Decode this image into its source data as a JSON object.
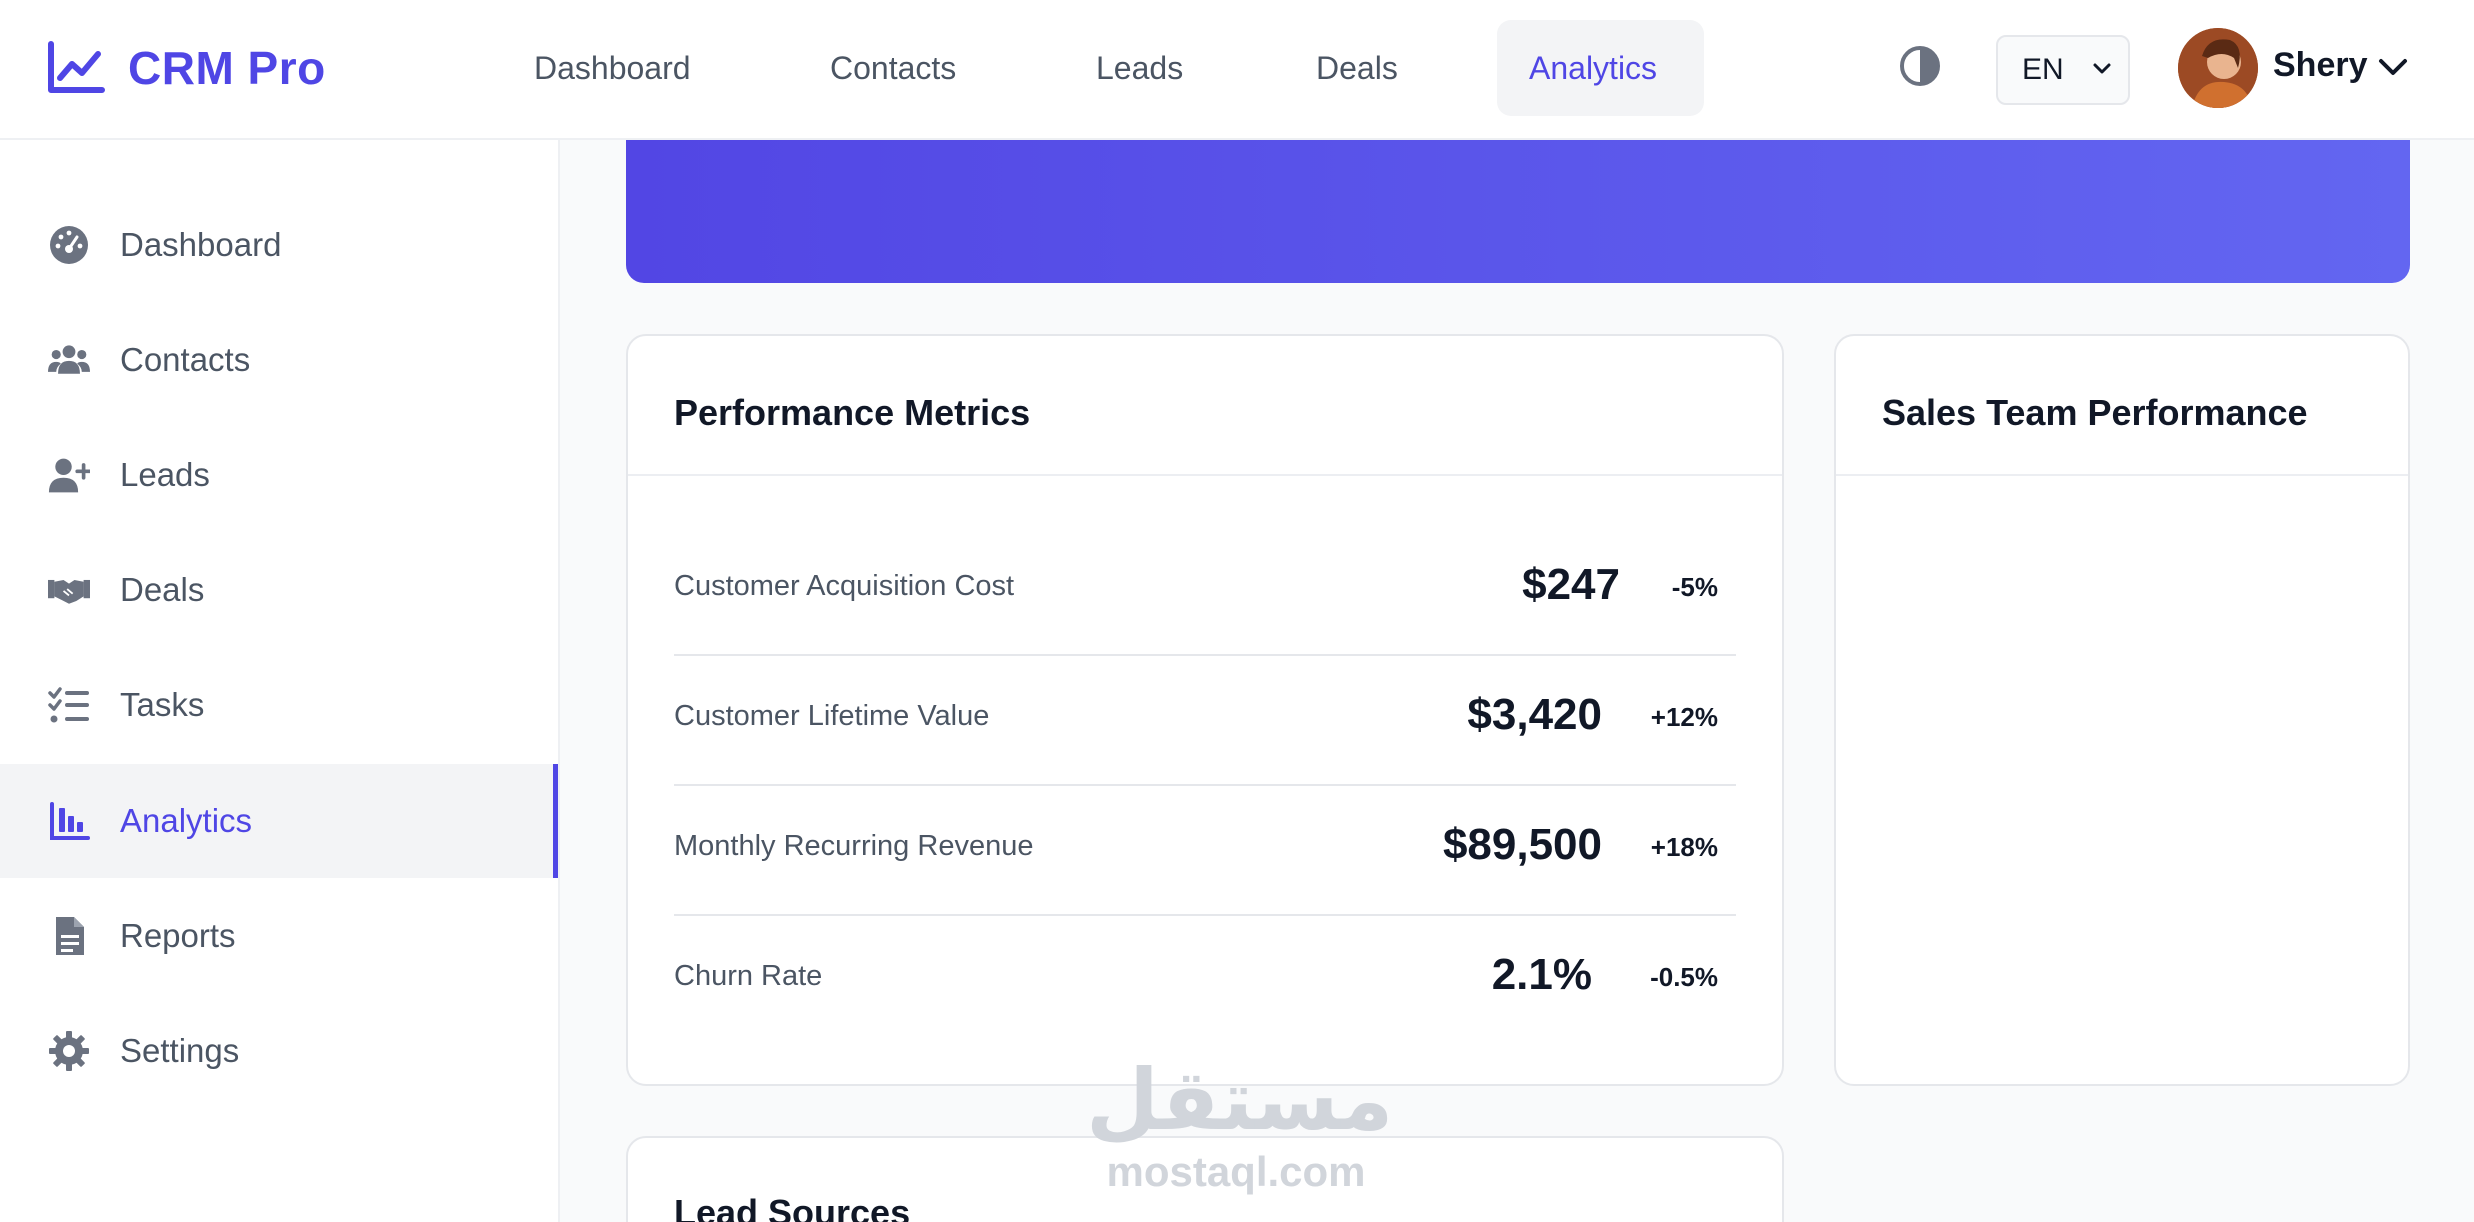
{
  "app": {
    "brand_name": "CRM Pro",
    "accent_color": "#4f46e5",
    "brand_icon": "chart-line-icon"
  },
  "topnav": {
    "links": [
      "Dashboard",
      "Contacts",
      "Leads",
      "Deals",
      "Analytics"
    ],
    "active": "Analytics",
    "theme_icon": "contrast-icon",
    "language": "EN",
    "user_name": "Shery"
  },
  "sidebar": {
    "items": [
      {
        "label": "Dashboard",
        "icon": "gauge-icon"
      },
      {
        "label": "Contacts",
        "icon": "users-icon"
      },
      {
        "label": "Leads",
        "icon": "user-plus-icon"
      },
      {
        "label": "Deals",
        "icon": "handshake-icon"
      },
      {
        "label": "Tasks",
        "icon": "list-check-icon"
      },
      {
        "label": "Analytics",
        "icon": "bar-chart-icon"
      },
      {
        "label": "Reports",
        "icon": "file-icon"
      },
      {
        "label": "Settings",
        "icon": "gear-icon"
      }
    ],
    "active": "Analytics"
  },
  "performance": {
    "title": "Performance Metrics",
    "metrics": [
      {
        "label": "Customer Acquisition Cost",
        "value": "$247",
        "change": "-5%"
      },
      {
        "label": "Customer Lifetime Value",
        "value": "$3,420",
        "change": "+12%"
      },
      {
        "label": "Monthly Recurring Revenue",
        "value": "$89,500",
        "change": "+18%"
      },
      {
        "label": "Churn Rate",
        "value": "2.1%",
        "change": "-0.5%"
      }
    ]
  },
  "sales_team": {
    "title": "Sales Team Performance"
  },
  "lead_sources": {
    "title": "Lead Sources"
  },
  "watermark": {
    "arabic": "مستقل",
    "latin": "mostaql.com"
  }
}
